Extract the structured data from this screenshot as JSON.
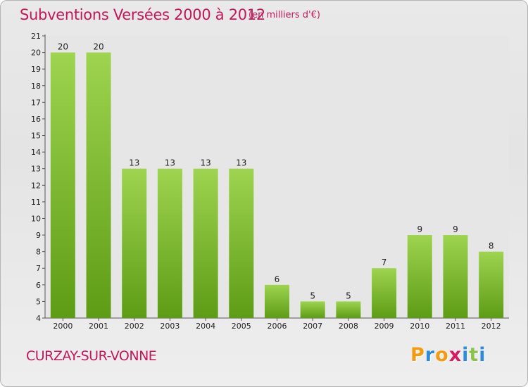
{
  "header": {
    "title": "Subventions Versées 2000 à 2012",
    "subtitle": "(en milliers d'€)"
  },
  "footer": {
    "commune": "CURZAY-SUR-VONNE",
    "logo": [
      "P",
      "r",
      "o",
      "x",
      "i",
      "t",
      "i"
    ],
    "logo_colors": [
      "#f39c12",
      "#2e8bd8",
      "#f39c12",
      "#d81b60",
      "#2e8bd8",
      "#8bc34a",
      "#2e8bd8"
    ]
  },
  "colors": {
    "bar_light": "#9ed44f",
    "bar_dark": "#5e9c16",
    "accent": "#c2185b"
  },
  "chart_data": {
    "type": "bar",
    "title": "Subventions Versées 2000 à 2012",
    "subtitle": "(en milliers d'€)",
    "categories": [
      "2000",
      "2001",
      "2002",
      "2003",
      "2004",
      "2005",
      "2006",
      "2007",
      "2008",
      "2009",
      "2010",
      "2011",
      "2012"
    ],
    "values": [
      20,
      20,
      13,
      13,
      13,
      13,
      6,
      5,
      5,
      7,
      9,
      9,
      8
    ],
    "ylim": [
      4,
      21
    ],
    "yticks": [
      4,
      5,
      6,
      7,
      8,
      9,
      10,
      11,
      12,
      13,
      14,
      15,
      16,
      17,
      18,
      19,
      20,
      21
    ],
    "grid": false,
    "data_labels": true
  }
}
